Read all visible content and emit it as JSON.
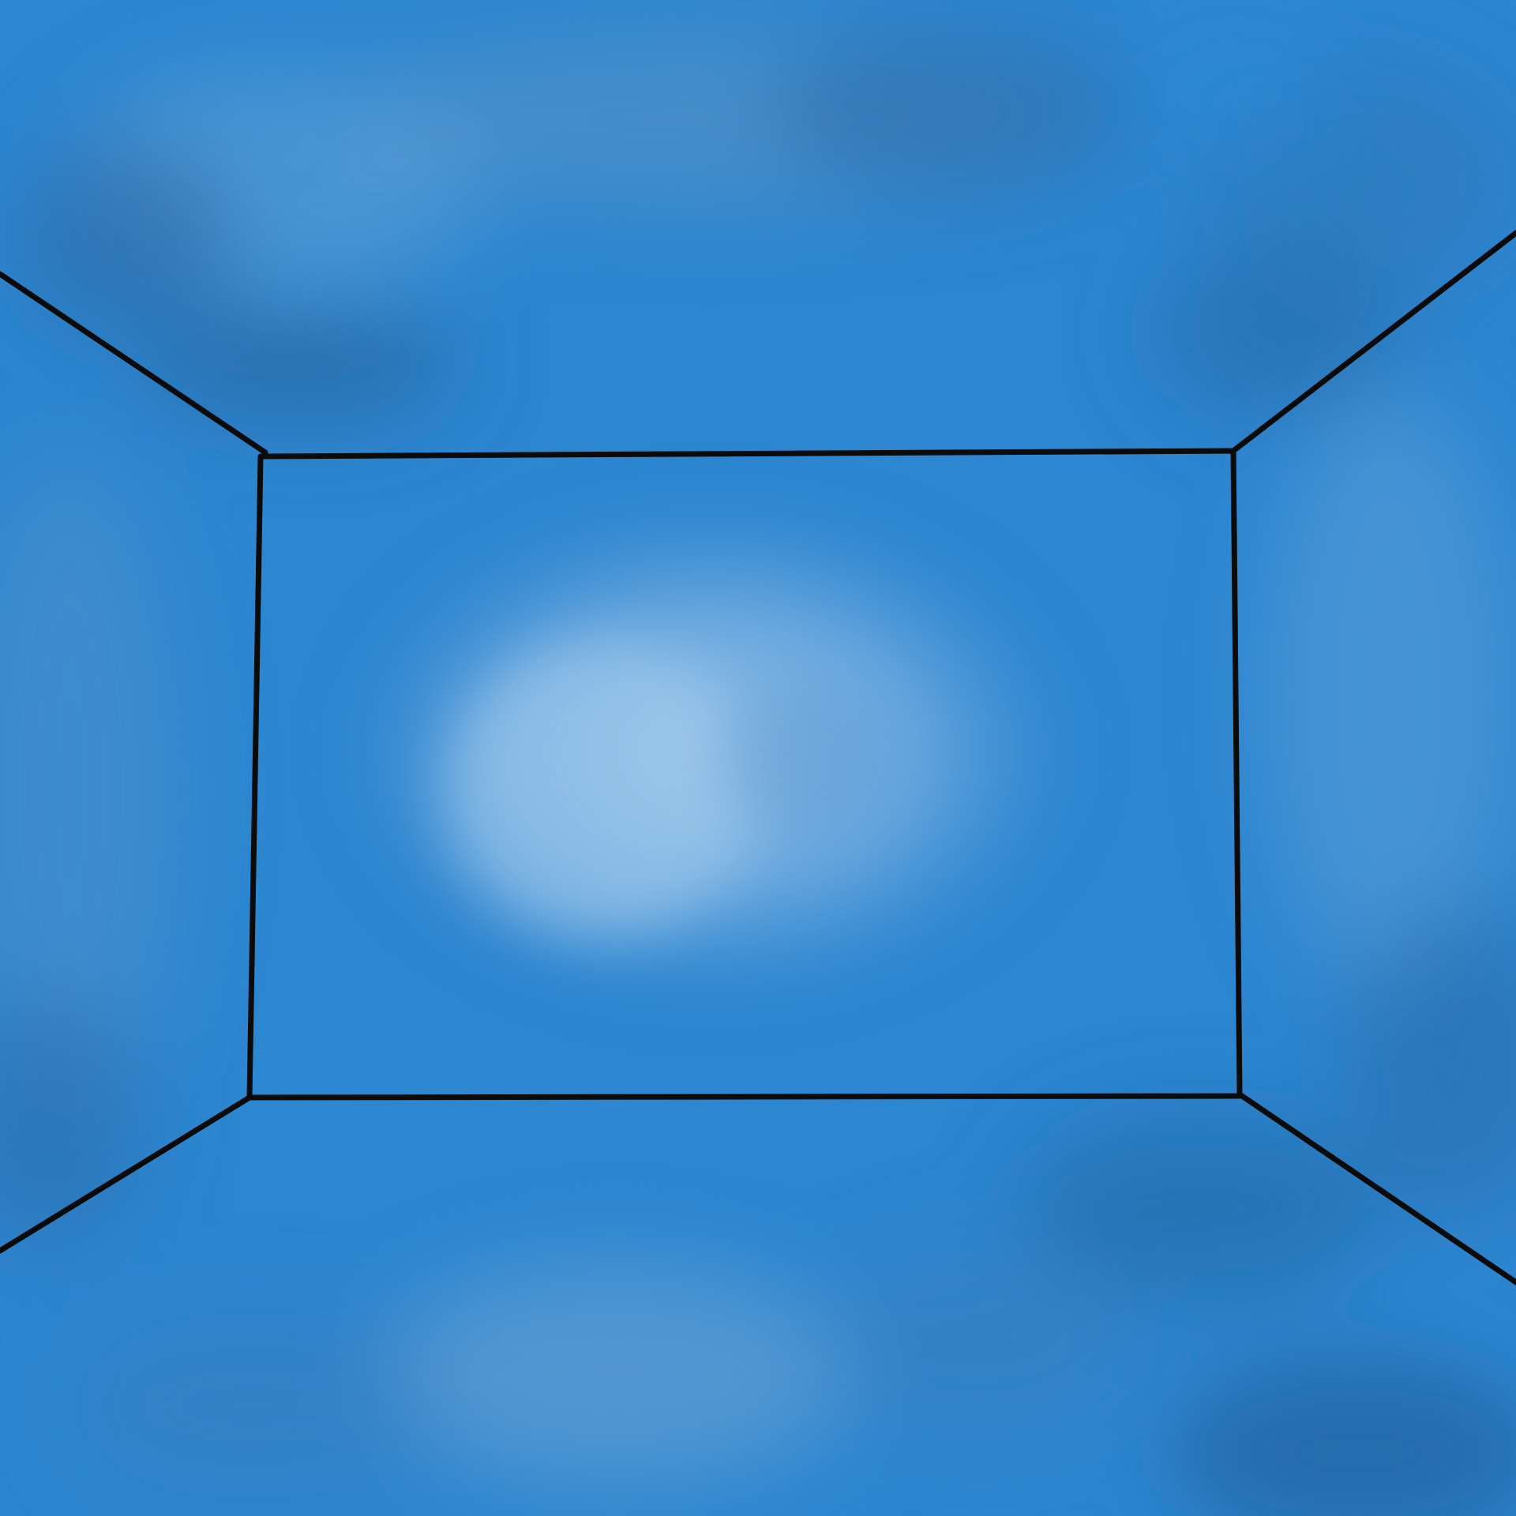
{
  "scene": {
    "description_free": true,
    "palette": {
      "base_blue": "#2d86d0",
      "light_blue": "#8fbde6",
      "mid_blue": "#4a95d6",
      "dark_blue": "#2366a3",
      "line": "#0b0b0b"
    }
  }
}
